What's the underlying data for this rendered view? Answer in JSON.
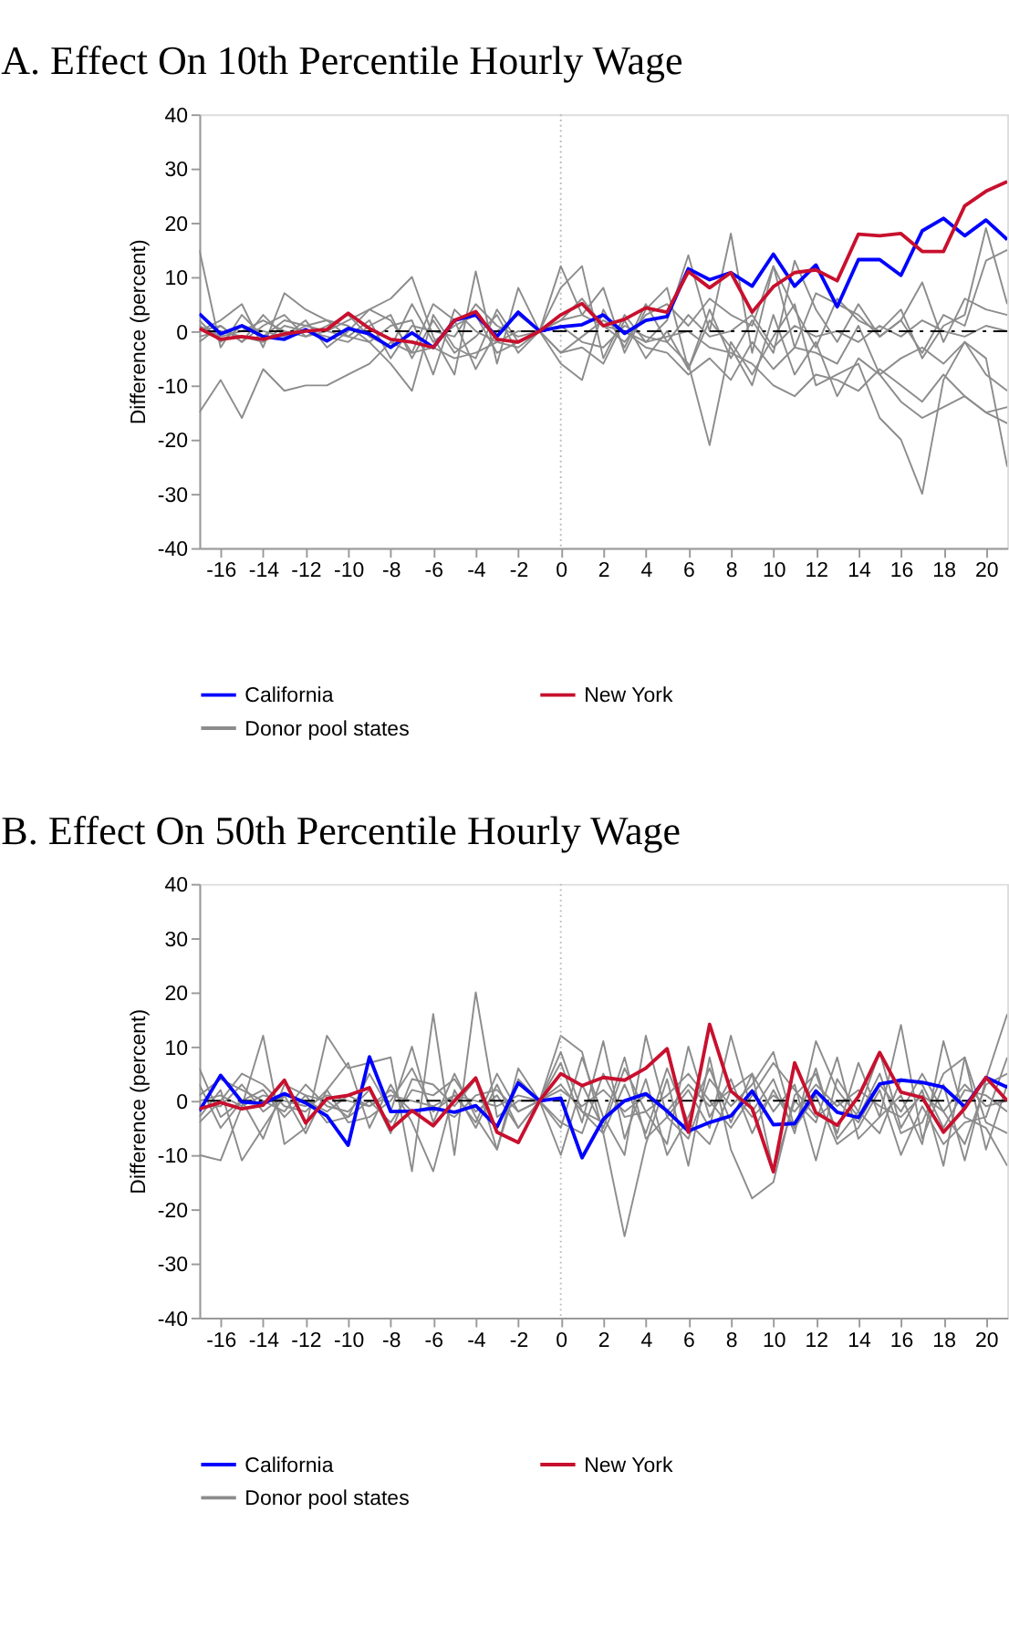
{
  "chart_data": [
    {
      "type": "line",
      "title": "A. Effect On 10th Percentile Hourly Wage",
      "ylabel": "Difference (percent)",
      "x": [
        -17,
        -16,
        -15,
        -14,
        -13,
        -12,
        -11,
        -10,
        -9,
        -8,
        -7,
        -6,
        -5,
        -4,
        -3,
        -2,
        -1,
        0,
        1,
        2,
        3,
        4,
        5,
        6,
        7,
        8,
        9,
        10,
        11,
        12,
        13,
        14,
        15,
        16,
        17,
        18,
        19,
        20,
        21
      ],
      "xlim": [
        -17,
        21
      ],
      "xticks": [
        -16,
        -14,
        -12,
        -10,
        -8,
        -6,
        -4,
        -2,
        0,
        2,
        4,
        6,
        8,
        10,
        12,
        14,
        16,
        18,
        20
      ],
      "ylim": [
        -40,
        40
      ],
      "yticks": [
        -40,
        -30,
        -20,
        -10,
        0,
        10,
        20,
        30,
        40
      ],
      "grid": false,
      "legend": "bottom",
      "marker": "none",
      "line_style": "solid",
      "ref_lines": [
        {
          "axis": "y",
          "value": 0,
          "color": "#000000",
          "line_style": "dashed"
        },
        {
          "axis": "x",
          "value": 0,
          "color": "#bbbbbb",
          "line_style": "dotted"
        }
      ],
      "series": [
        {
          "name": "California",
          "color": "#0000ff",
          "values": [
            3.2,
            -0.5,
            1,
            -1,
            -1.5,
            0.3,
            -1.8,
            0.5,
            -0.5,
            -3,
            -0.3,
            -3,
            2,
            3,
            -1,
            3.5,
            0,
            0.8,
            1.2,
            3,
            -0.4,
            2,
            2.7,
            11.5,
            9.5,
            10.8,
            8.3,
            14.2,
            8.3,
            12.2,
            4.5,
            13.2,
            13.2,
            10.3,
            18.5,
            20.8,
            17.6,
            20.5,
            16.9
          ]
        },
        {
          "name": "New York",
          "color": "#c8102e",
          "values": [
            0.5,
            -1.5,
            -1,
            -1.5,
            -0.5,
            0,
            0.3,
            3.3,
            0.5,
            -1.5,
            -2,
            -3,
            2,
            3.6,
            -1.5,
            -2,
            0,
            3,
            5.1,
            1,
            2.2,
            4.3,
            3.5,
            11,
            8,
            10.8,
            3.5,
            8.2,
            10.8,
            11.3,
            9.3,
            17.9,
            17.6,
            18,
            14.7,
            14.7,
            23.1,
            25.8,
            27.6
          ]
        },
        {
          "name": "Donor pool states",
          "color": "#8c8c8c",
          "values": [
            -15,
            -9,
            -16,
            -7,
            -11,
            -10,
            -10,
            -8,
            -6,
            -2,
            -4,
            -3,
            -5,
            -4,
            -2,
            -3,
            0,
            2,
            3,
            1,
            0,
            -2,
            -1,
            0,
            -3,
            -4,
            -6,
            -10,
            -12,
            -8,
            -9,
            -11,
            -7,
            -10,
            -13,
            -8,
            -12,
            -15,
            -17
          ]
        },
        {
          "color": "#8c8c8c",
          "values": [
            15,
            -3,
            3,
            -1,
            2,
            1,
            0,
            2,
            4,
            6,
            10,
            -1,
            -8,
            11,
            -6,
            8,
            0,
            8,
            12,
            -5,
            3,
            -2,
            2,
            14,
            0,
            18,
            -4,
            12,
            4,
            -3,
            6,
            2,
            0,
            4,
            -5,
            1,
            3,
            19,
            5
          ]
        },
        {
          "color": "#8c8c8c",
          "values": [
            0,
            2,
            5,
            -3,
            7,
            4,
            2,
            1,
            -2,
            -6,
            -11,
            3,
            -3,
            -5,
            4,
            -2,
            0,
            -6,
            -9,
            4,
            -3,
            5,
            -2,
            -6,
            -21,
            -2,
            -8,
            -1,
            5,
            -10,
            -8,
            -6,
            -16,
            -20,
            -30,
            -9,
            -2,
            -5,
            -25
          ]
        },
        {
          "color": "#8c8c8c",
          "values": [
            -2,
            1,
            -2,
            3,
            -1,
            2,
            -3,
            0,
            4,
            2,
            -4,
            5,
            2,
            -7,
            0,
            3,
            0,
            -4,
            -3,
            -6,
            2,
            -5,
            0,
            -7,
            2,
            -3,
            -10,
            3,
            -8,
            -2,
            -12,
            -5,
            -8,
            -13,
            -16,
            -14,
            -12,
            -15,
            -14
          ]
        },
        {
          "color": "#8c8c8c",
          "values": [
            1,
            -1,
            0,
            2,
            0,
            -1,
            1,
            3,
            -1,
            -3,
            5,
            -2,
            1,
            3,
            -4,
            -2,
            0,
            2,
            6,
            1,
            -2,
            3,
            5,
            1,
            6,
            3,
            1,
            12,
            -3,
            7,
            5,
            3,
            -1,
            2,
            9,
            -2,
            6,
            4,
            3
          ]
        },
        {
          "color": "#8c8c8c",
          "values": [
            -1,
            0,
            -1,
            -2,
            1,
            0,
            -1,
            -2,
            1,
            3,
            -5,
            2,
            -4,
            -1,
            3,
            -4,
            0,
            -4,
            -1,
            2,
            0,
            -3,
            -4,
            -8,
            -5,
            -9,
            -2,
            -7,
            -3,
            -4,
            -6,
            1,
            -8,
            -5,
            -3,
            -6,
            -2,
            -8,
            -11
          ]
        },
        {
          "color": "#8c8c8c",
          "values": [
            2,
            -2,
            1,
            0,
            -1,
            1,
            2,
            -1,
            -2,
            1,
            2,
            -8,
            4,
            0,
            -2,
            0,
            0,
            12,
            3,
            8,
            -4,
            4,
            8,
            -7,
            4,
            -5,
            2,
            -4,
            13,
            4,
            -2,
            5,
            -1,
            2,
            -4,
            3,
            1,
            13,
            15
          ]
        },
        {
          "color": "#8c8c8c",
          "values": [
            0,
            1,
            -2,
            1,
            3,
            -1,
            0,
            -1,
            2,
            -5,
            1,
            0,
            -1,
            5,
            1,
            -1,
            0,
            1,
            -2,
            -3,
            1,
            -1,
            -2,
            3,
            -1,
            0,
            3,
            -3,
            1,
            -1,
            0,
            -2,
            1,
            -1,
            2,
            0,
            -1,
            1,
            0
          ]
        }
      ]
    },
    {
      "type": "line",
      "title": "B. Effect On 50th Percentile Hourly Wage",
      "ylabel": "Difference (percent)",
      "x": [
        -17,
        -16,
        -15,
        -14,
        -13,
        -12,
        -11,
        -10,
        -9,
        -8,
        -7,
        -6,
        -5,
        -4,
        -3,
        -2,
        -1,
        0,
        1,
        2,
        3,
        4,
        5,
        6,
        7,
        8,
        9,
        10,
        11,
        12,
        13,
        14,
        15,
        16,
        17,
        18,
        19,
        20,
        21
      ],
      "xlim": [
        -17,
        21
      ],
      "xticks": [
        -16,
        -14,
        -12,
        -10,
        -8,
        -6,
        -4,
        -2,
        0,
        2,
        4,
        6,
        8,
        10,
        12,
        14,
        16,
        18,
        20
      ],
      "ylim": [
        -40,
        40
      ],
      "yticks": [
        -40,
        -30,
        -20,
        -10,
        0,
        10,
        20,
        30,
        40
      ],
      "grid": false,
      "legend": "bottom",
      "marker": "none",
      "line_style": "solid",
      "ref_lines": [
        {
          "axis": "y",
          "value": 0,
          "color": "#000000",
          "line_style": "dashed"
        },
        {
          "axis": "x",
          "value": 0,
          "color": "#bbbbbb",
          "line_style": "dotted"
        }
      ],
      "series": [
        {
          "name": "California",
          "color": "#0000ff",
          "values": [
            -1.9,
            4.7,
            -0.2,
            -0.5,
            1.3,
            -0.4,
            -2.8,
            -8.2,
            8.1,
            -2,
            -1.9,
            -1.4,
            -2.1,
            -0.9,
            -4.8,
            3.3,
            0,
            0.5,
            -10.5,
            -3.4,
            0,
            1.3,
            -1.9,
            -5.6,
            -4,
            -2.8,
            1.8,
            -4.4,
            -4.2,
            1.8,
            -2.1,
            -3.1,
            3.1,
            3.8,
            3.4,
            2.5,
            -1.1,
            4.3,
            2.5
          ]
        },
        {
          "name": "New York",
          "color": "#c8102e",
          "values": [
            -1.5,
            -0.3,
            -1.5,
            -0.8,
            3.8,
            -4.1,
            0.4,
            1,
            2.4,
            -5.3,
            -1.8,
            -4.6,
            0,
            4.2,
            -5.8,
            -7.7,
            0,
            5,
            2.8,
            4.3,
            3.8,
            6,
            9.6,
            -5.8,
            14.1,
            1.8,
            -1.4,
            -13.1,
            7,
            -2.2,
            -4.5,
            0.8,
            8.9,
            1.6,
            0.6,
            -5.8,
            -1.4,
            4.3,
            0
          ]
        },
        {
          "name": "Donor pool states",
          "color": "#8c8c8c",
          "values": [
            -10,
            -11,
            -1,
            12,
            -8,
            -5,
            12,
            6,
            7,
            8,
            -13,
            16,
            -10,
            20,
            -3,
            0,
            0,
            12,
            9,
            -6,
            -25,
            -8,
            4,
            -12,
            8,
            -9,
            -18,
            -15,
            1,
            5,
            -6,
            7,
            -3,
            14,
            -7,
            3,
            -11,
            4,
            16
          ]
        },
        {
          "color": "#8c8c8c",
          "values": [
            6,
            -3,
            0,
            -7,
            3,
            1,
            -4,
            -3,
            5,
            -2,
            10,
            -4,
            5,
            -3,
            -9,
            6,
            0,
            -10,
            3,
            -5,
            6,
            -2,
            -8,
            10,
            -3,
            4,
            -6,
            2,
            -5,
            6,
            -7,
            -2,
            9,
            -5,
            2,
            -12,
            8,
            -4,
            -6
          ]
        },
        {
          "color": "#8c8c8c",
          "values": [
            -3,
            2,
            -11,
            -5,
            1,
            -6,
            2,
            7,
            -5,
            3,
            -4,
            -13,
            2,
            -5,
            3,
            -5,
            0,
            7,
            -4,
            11,
            -7,
            4,
            -10,
            -3,
            6,
            -4,
            5,
            -13,
            0,
            -4,
            8,
            -7,
            -3,
            1,
            -8,
            11,
            -3,
            -5,
            -12
          ]
        },
        {
          "color": "#8c8c8c",
          "values": [
            1,
            4,
            2,
            0,
            -2,
            3,
            -1,
            -2,
            2,
            -6,
            4,
            3,
            -1,
            4,
            -9,
            4,
            0,
            -5,
            8,
            -3,
            -10,
            12,
            -3,
            2,
            -5,
            12,
            -2,
            4,
            -6,
            11,
            2,
            -3,
            5,
            -6,
            -4,
            5,
            8,
            -9,
            3
          ]
        },
        {
          "color": "#8c8c8c",
          "values": [
            -1,
            -1,
            3,
            -2,
            1,
            0,
            -2,
            1,
            -1,
            2,
            -2,
            -1,
            -3,
            1,
            2,
            -2,
            0,
            3,
            -2,
            -6,
            3,
            -6,
            6,
            -4,
            -8,
            2,
            5,
            -2,
            3,
            -11,
            4,
            -2,
            -6,
            4,
            3,
            -5,
            2,
            1,
            -2
          ]
        },
        {
          "color": "#8c8c8c",
          "values": [
            3,
            -5,
            0,
            2,
            -3,
            1,
            0,
            -3,
            0,
            -4,
            2,
            1,
            4,
            -2,
            1,
            -5,
            0,
            -4,
            -6,
            5,
            -3,
            -2,
            1,
            5,
            0,
            -5,
            1,
            7,
            2,
            -3,
            0,
            -4,
            3,
            -2,
            5,
            -2,
            -8,
            3,
            5
          ]
        },
        {
          "color": "#8c8c8c",
          "values": [
            0,
            1,
            -1,
            1,
            0,
            -1,
            1,
            0,
            -1,
            1,
            0,
            -1,
            1,
            0,
            -1,
            1,
            0,
            2,
            -1,
            2,
            -2,
            1,
            -2,
            3,
            -1,
            2,
            -3,
            1,
            -2,
            3,
            -1,
            2,
            -1,
            -3,
            1,
            -2,
            3,
            -1,
            0
          ]
        },
        {
          "color": "#8c8c8c",
          "values": [
            -4,
            0,
            5,
            3,
            -1,
            -2,
            2,
            -4,
            -3,
            0,
            6,
            -2,
            1,
            -4,
            5,
            -2,
            0,
            9,
            -2,
            -4,
            8,
            -7,
            -3,
            -7,
            4,
            -1,
            3,
            9,
            -5,
            1,
            -8,
            -5,
            2,
            -10,
            -1,
            -8,
            -4,
            -3,
            8
          ]
        }
      ]
    }
  ]
}
